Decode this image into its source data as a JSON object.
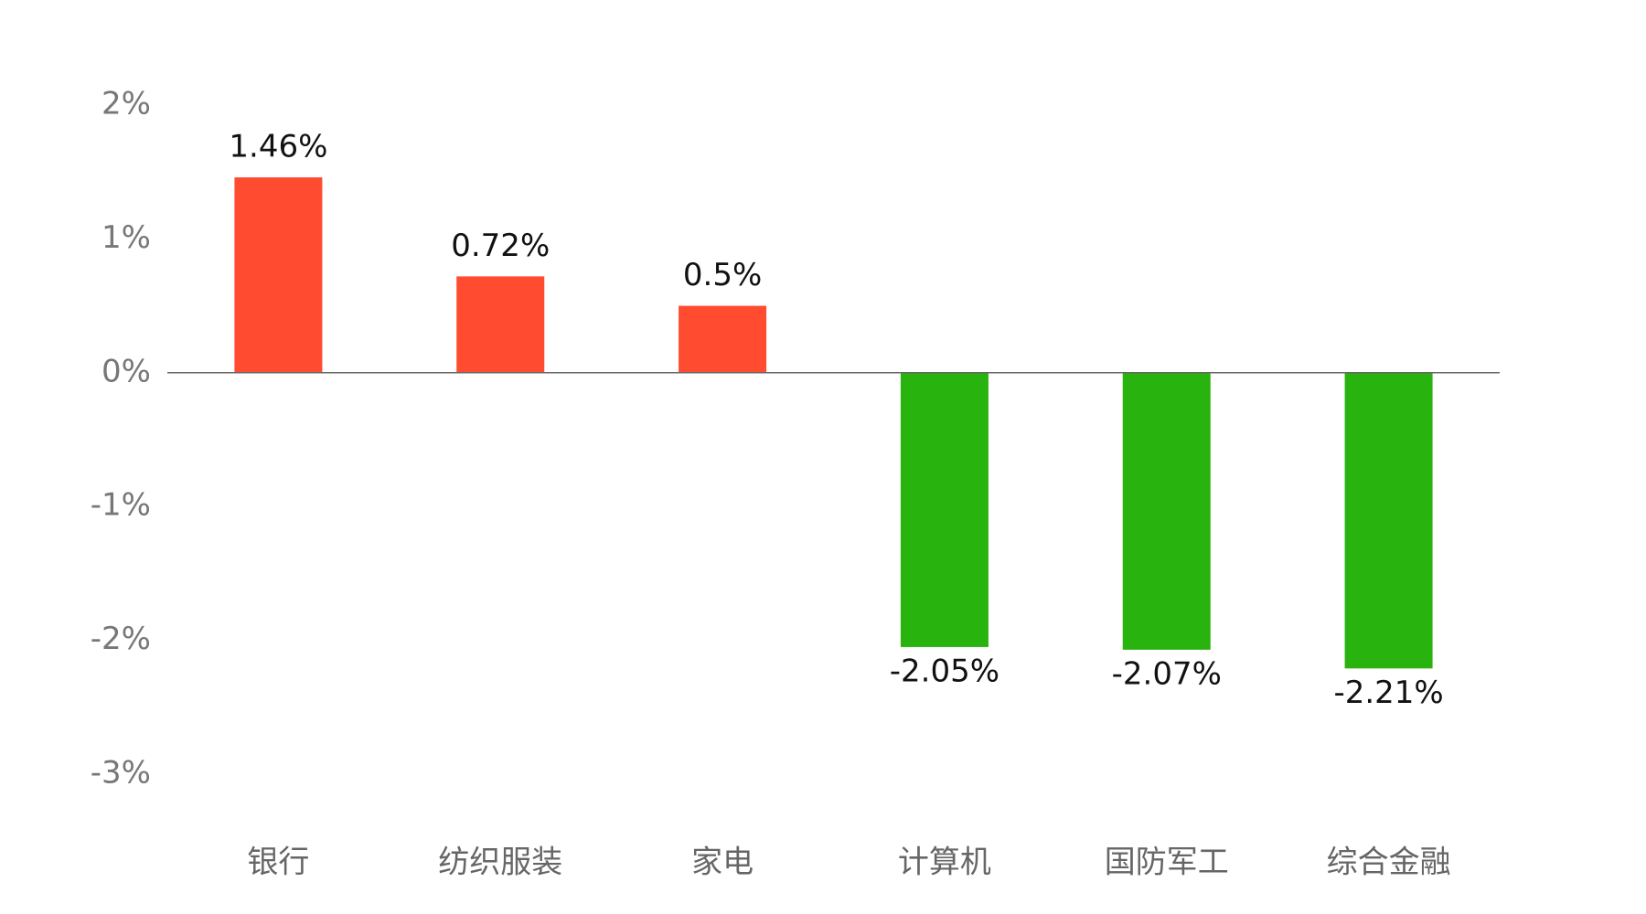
{
  "chart_data": {
    "type": "bar",
    "categories": [
      "银行",
      "纺织服装",
      "家电",
      "计算机",
      "国防军工",
      "综合金融"
    ],
    "values": [
      1.46,
      0.72,
      0.5,
      -2.05,
      -2.07,
      -2.21
    ],
    "value_labels": [
      "1.46%",
      "0.72%",
      "0.5%",
      "-2.05%",
      "-2.07%",
      "-2.21%"
    ],
    "colors": [
      "#ff4b30",
      "#ff4b30",
      "#ff4b30",
      "#28b30e",
      "#28b30e",
      "#28b30e"
    ],
    "ylim": [
      -3,
      2
    ],
    "yticks": [
      {
        "value": 2,
        "label": "2%"
      },
      {
        "value": 1,
        "label": "1%"
      },
      {
        "value": 0,
        "label": "0%"
      },
      {
        "value": -1,
        "label": "-1%"
      },
      {
        "value": -2,
        "label": "-2%"
      },
      {
        "value": -3,
        "label": "-3%"
      }
    ],
    "grid": false
  }
}
